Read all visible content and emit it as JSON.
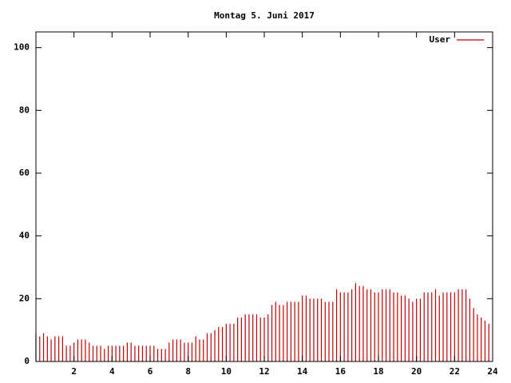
{
  "chart_data": {
    "type": "impulses",
    "title": "Montag 5. Juni 2017",
    "xlim": [
      0,
      24
    ],
    "xticks": [
      2,
      4,
      6,
      8,
      10,
      12,
      14,
      16,
      18,
      20,
      22,
      24
    ],
    "ylim": [
      0,
      105
    ],
    "yticks": [
      0,
      20,
      40,
      60,
      80,
      100
    ],
    "legend": "top-right",
    "series": [
      {
        "name": "User",
        "color": "#c00000",
        "x": [
          0,
          0.2,
          0.4,
          0.6,
          0.8,
          1,
          1.2,
          1.4,
          1.6,
          1.8,
          2,
          2.2,
          2.4,
          2.6,
          2.8,
          3,
          3.2,
          3.4,
          3.6,
          3.8,
          4,
          4.2,
          4.4,
          4.6,
          4.8,
          5,
          5.2,
          5.4,
          5.6,
          5.8,
          6,
          6.2,
          6.4,
          6.6,
          6.8,
          7,
          7.2,
          7.4,
          7.6,
          7.8,
          8,
          8.2,
          8.4,
          8.6,
          8.8,
          9,
          9.2,
          9.4,
          9.6,
          9.8,
          10,
          10.2,
          10.4,
          10.6,
          10.8,
          11,
          11.2,
          11.4,
          11.6,
          11.8,
          12,
          12.2,
          12.4,
          12.6,
          12.8,
          13,
          13.2,
          13.4,
          13.6,
          13.8,
          14,
          14.2,
          14.4,
          14.6,
          14.8,
          15,
          15.2,
          15.4,
          15.6,
          15.8,
          16,
          16.2,
          16.4,
          16.6,
          16.8,
          17,
          17.2,
          17.4,
          17.6,
          17.8,
          18,
          18.2,
          18.4,
          18.6,
          18.8,
          19,
          19.2,
          19.4,
          19.6,
          19.8,
          20,
          20.2,
          20.4,
          20.6,
          20.8,
          21,
          21.2,
          21.4,
          21.6,
          21.8,
          22,
          22.2,
          22.4,
          22.6,
          22.8,
          23,
          23.2,
          23.4,
          23.6,
          23.8
        ],
        "values": [
          9,
          8,
          9,
          8,
          7,
          8,
          8,
          8,
          5,
          5,
          6,
          7,
          7,
          7,
          6,
          5,
          5,
          5,
          4,
          5,
          5,
          5,
          5,
          5,
          6,
          6,
          5,
          5,
          5,
          5,
          5,
          5,
          4,
          4,
          4,
          6,
          7,
          7,
          7,
          6,
          6,
          6,
          8,
          7,
          7,
          9,
          9,
          10,
          11,
          11,
          12,
          12,
          12,
          14,
          14,
          15,
          15,
          15,
          15,
          14,
          14,
          15,
          18,
          19,
          18,
          18,
          19,
          19,
          19,
          19,
          21,
          21,
          20,
          20,
          20,
          20,
          19,
          19,
          19,
          23,
          22,
          22,
          22,
          23,
          25,
          24,
          24,
          23,
          23,
          22,
          22,
          23,
          23,
          23,
          22,
          22,
          21,
          21,
          20,
          19,
          20,
          20,
          22,
          22,
          22,
          23,
          21,
          22,
          22,
          22,
          22,
          23,
          23,
          23,
          20,
          17,
          15,
          14,
          13,
          12
        ]
      }
    ]
  }
}
